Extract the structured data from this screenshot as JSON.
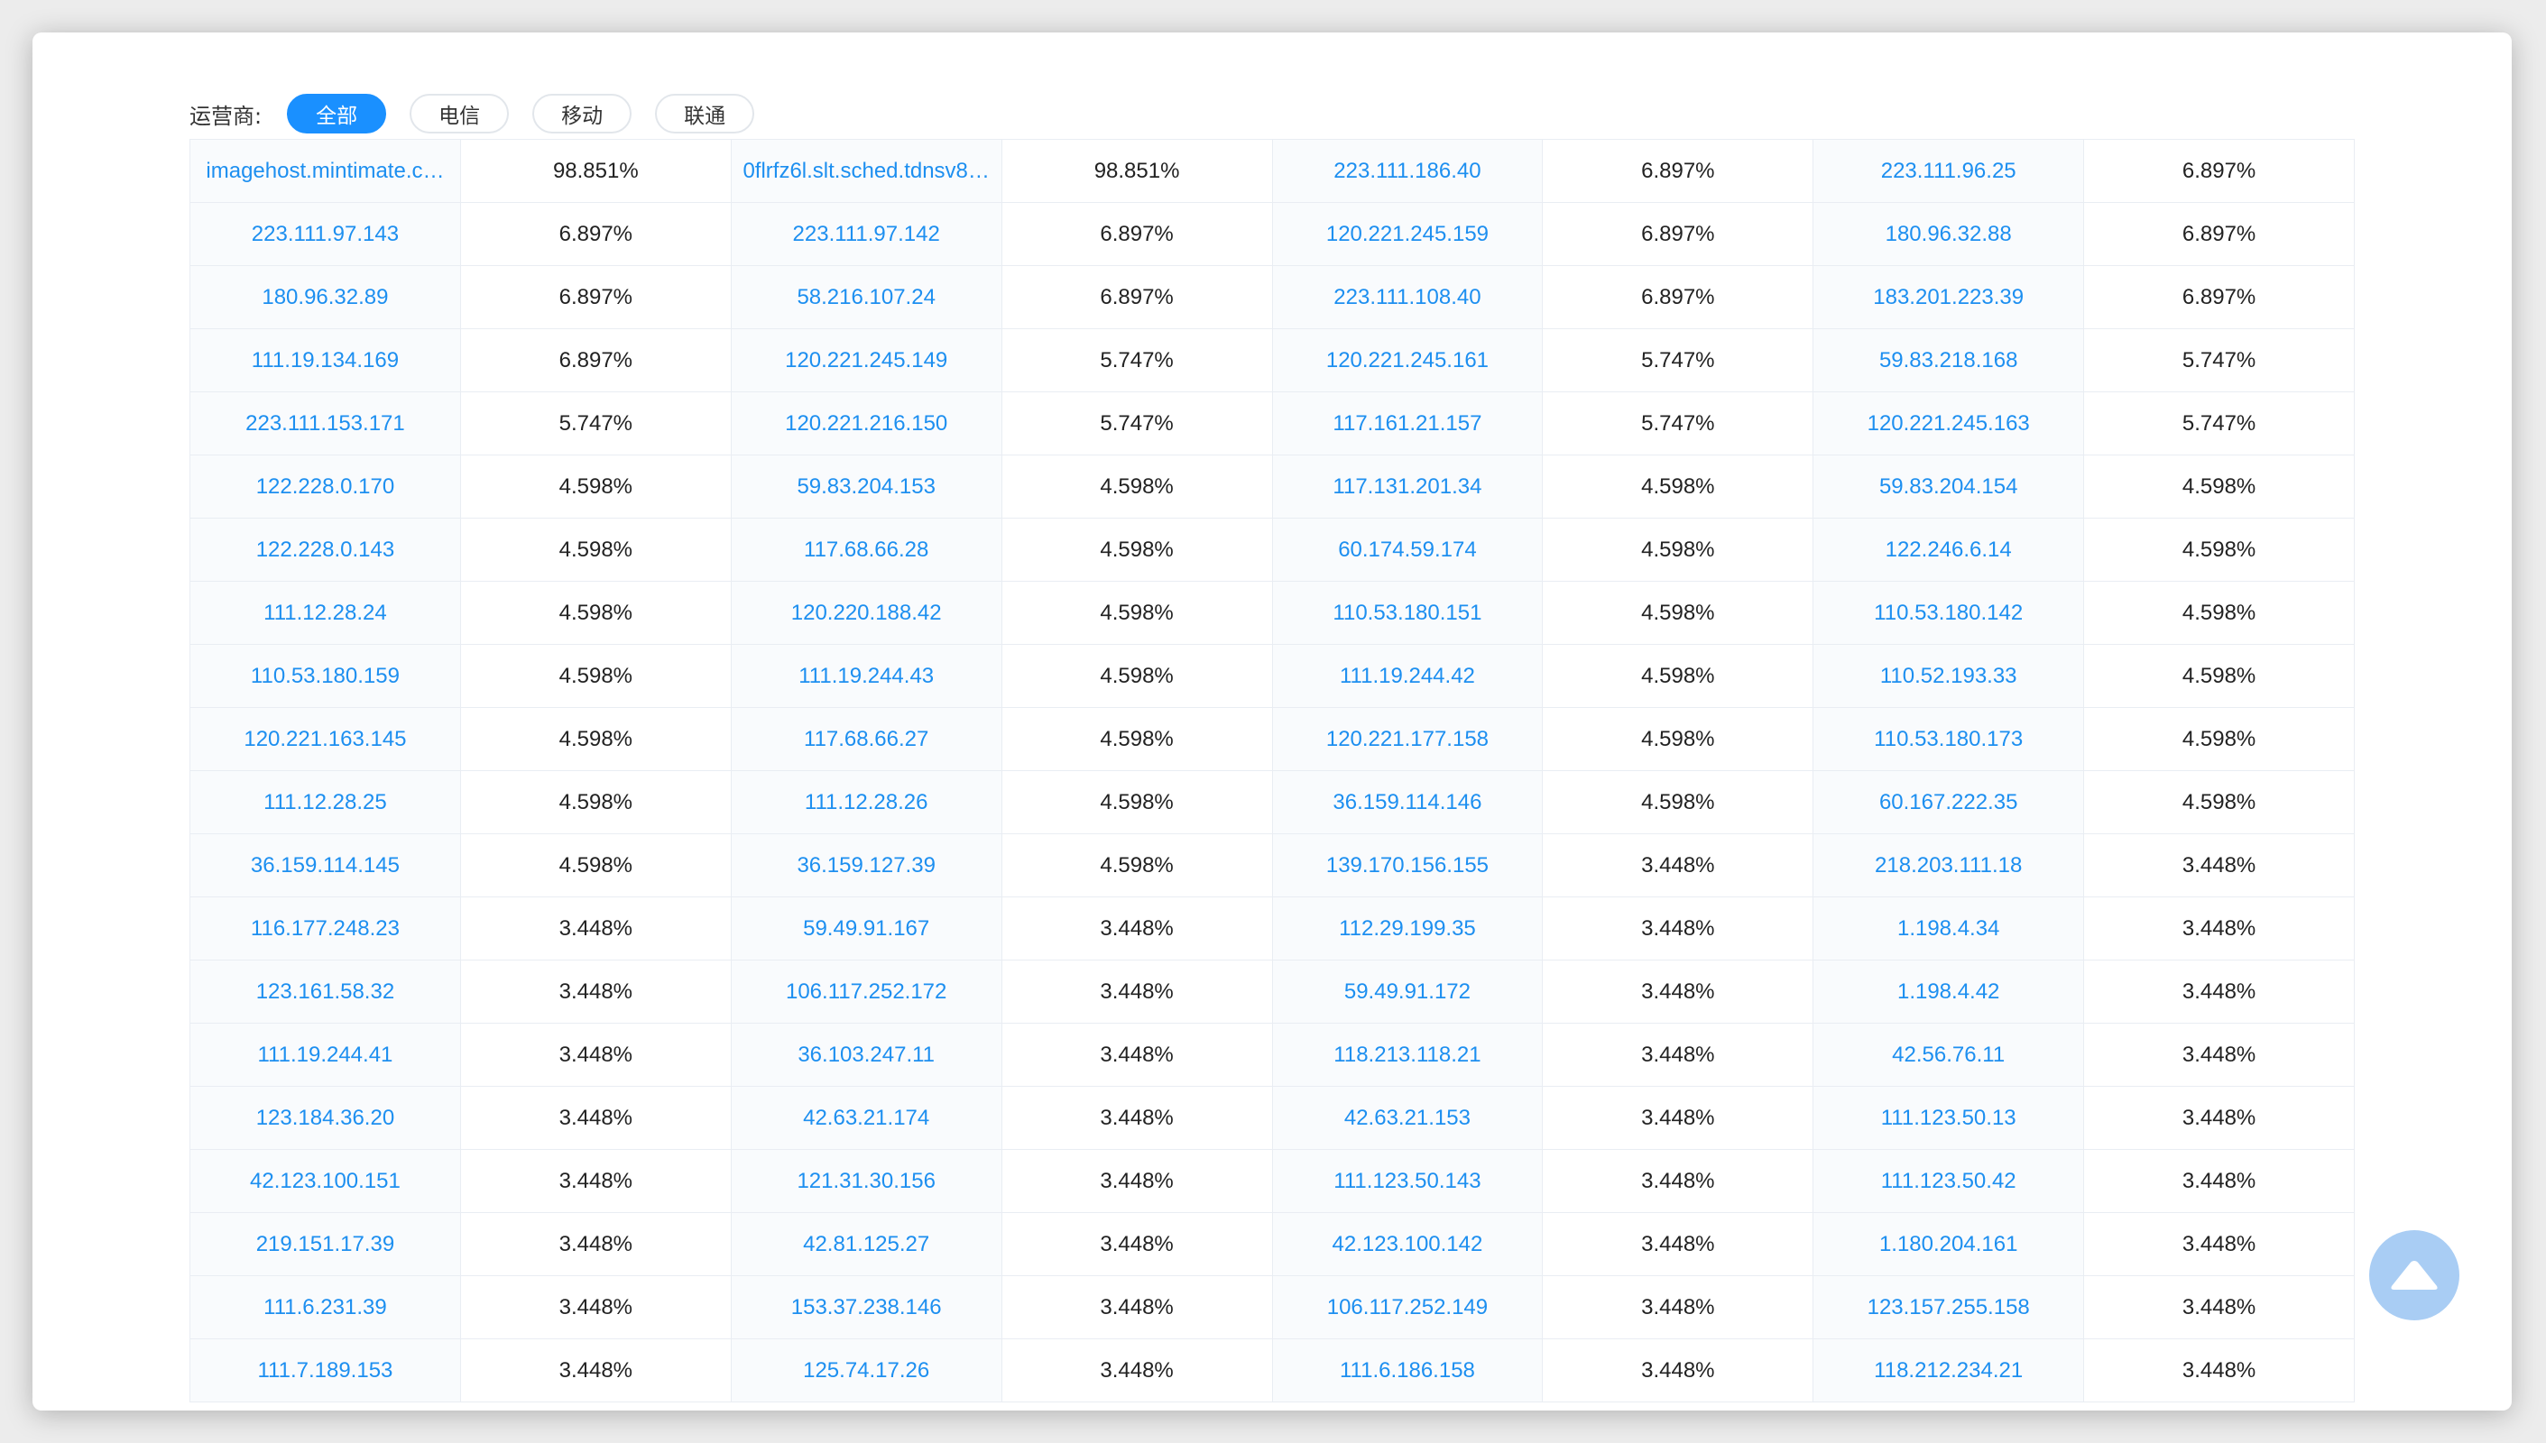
{
  "filter": {
    "label": "运营商:",
    "options": [
      {
        "label": "全部",
        "active": true
      },
      {
        "label": "电信",
        "active": false
      },
      {
        "label": "移动",
        "active": false
      },
      {
        "label": "联通",
        "active": false
      }
    ]
  },
  "colors": {
    "accent": "#1a90ff",
    "link": "#1d8ff0",
    "back_to_top": "#a9cdf4"
  },
  "icons": {
    "back_to_top": "triangle-up-icon"
  },
  "table": {
    "rows": [
      [
        [
          "imagehost.mintimate.c…",
          "98.851%"
        ],
        [
          "0flrfz6l.slt.sched.tdnsv8…",
          "98.851%"
        ],
        [
          "223.111.186.40",
          "6.897%"
        ],
        [
          "223.111.96.25",
          "6.897%"
        ]
      ],
      [
        [
          "223.111.97.143",
          "6.897%"
        ],
        [
          "223.111.97.142",
          "6.897%"
        ],
        [
          "120.221.245.159",
          "6.897%"
        ],
        [
          "180.96.32.88",
          "6.897%"
        ]
      ],
      [
        [
          "180.96.32.89",
          "6.897%"
        ],
        [
          "58.216.107.24",
          "6.897%"
        ],
        [
          "223.111.108.40",
          "6.897%"
        ],
        [
          "183.201.223.39",
          "6.897%"
        ]
      ],
      [
        [
          "111.19.134.169",
          "6.897%"
        ],
        [
          "120.221.245.149",
          "5.747%"
        ],
        [
          "120.221.245.161",
          "5.747%"
        ],
        [
          "59.83.218.168",
          "5.747%"
        ]
      ],
      [
        [
          "223.111.153.171",
          "5.747%"
        ],
        [
          "120.221.216.150",
          "5.747%"
        ],
        [
          "117.161.21.157",
          "5.747%"
        ],
        [
          "120.221.245.163",
          "5.747%"
        ]
      ],
      [
        [
          "122.228.0.170",
          "4.598%"
        ],
        [
          "59.83.204.153",
          "4.598%"
        ],
        [
          "117.131.201.34",
          "4.598%"
        ],
        [
          "59.83.204.154",
          "4.598%"
        ]
      ],
      [
        [
          "122.228.0.143",
          "4.598%"
        ],
        [
          "117.68.66.28",
          "4.598%"
        ],
        [
          "60.174.59.174",
          "4.598%"
        ],
        [
          "122.246.6.14",
          "4.598%"
        ]
      ],
      [
        [
          "111.12.28.24",
          "4.598%"
        ],
        [
          "120.220.188.42",
          "4.598%"
        ],
        [
          "110.53.180.151",
          "4.598%"
        ],
        [
          "110.53.180.142",
          "4.598%"
        ]
      ],
      [
        [
          "110.53.180.159",
          "4.598%"
        ],
        [
          "111.19.244.43",
          "4.598%"
        ],
        [
          "111.19.244.42",
          "4.598%"
        ],
        [
          "110.52.193.33",
          "4.598%"
        ]
      ],
      [
        [
          "120.221.163.145",
          "4.598%"
        ],
        [
          "117.68.66.27",
          "4.598%"
        ],
        [
          "120.221.177.158",
          "4.598%"
        ],
        [
          "110.53.180.173",
          "4.598%"
        ]
      ],
      [
        [
          "111.12.28.25",
          "4.598%"
        ],
        [
          "111.12.28.26",
          "4.598%"
        ],
        [
          "36.159.114.146",
          "4.598%"
        ],
        [
          "60.167.222.35",
          "4.598%"
        ]
      ],
      [
        [
          "36.159.114.145",
          "4.598%"
        ],
        [
          "36.159.127.39",
          "4.598%"
        ],
        [
          "139.170.156.155",
          "3.448%"
        ],
        [
          "218.203.111.18",
          "3.448%"
        ]
      ],
      [
        [
          "116.177.248.23",
          "3.448%"
        ],
        [
          "59.49.91.167",
          "3.448%"
        ],
        [
          "112.29.199.35",
          "3.448%"
        ],
        [
          "1.198.4.34",
          "3.448%"
        ]
      ],
      [
        [
          "123.161.58.32",
          "3.448%"
        ],
        [
          "106.117.252.172",
          "3.448%"
        ],
        [
          "59.49.91.172",
          "3.448%"
        ],
        [
          "1.198.4.42",
          "3.448%"
        ]
      ],
      [
        [
          "111.19.244.41",
          "3.448%"
        ],
        [
          "36.103.247.11",
          "3.448%"
        ],
        [
          "118.213.118.21",
          "3.448%"
        ],
        [
          "42.56.76.11",
          "3.448%"
        ]
      ],
      [
        [
          "123.184.36.20",
          "3.448%"
        ],
        [
          "42.63.21.174",
          "3.448%"
        ],
        [
          "42.63.21.153",
          "3.448%"
        ],
        [
          "111.123.50.13",
          "3.448%"
        ]
      ],
      [
        [
          "42.123.100.151",
          "3.448%"
        ],
        [
          "121.31.30.156",
          "3.448%"
        ],
        [
          "111.123.50.143",
          "3.448%"
        ],
        [
          "111.123.50.42",
          "3.448%"
        ]
      ],
      [
        [
          "219.151.17.39",
          "3.448%"
        ],
        [
          "42.81.125.27",
          "3.448%"
        ],
        [
          "42.123.100.142",
          "3.448%"
        ],
        [
          "1.180.204.161",
          "3.448%"
        ]
      ],
      [
        [
          "111.6.231.39",
          "3.448%"
        ],
        [
          "153.37.238.146",
          "3.448%"
        ],
        [
          "106.117.252.149",
          "3.448%"
        ],
        [
          "123.157.255.158",
          "3.448%"
        ]
      ],
      [
        [
          "111.7.189.153",
          "3.448%"
        ],
        [
          "125.74.17.26",
          "3.448%"
        ],
        [
          "111.6.186.158",
          "3.448%"
        ],
        [
          "118.212.234.21",
          "3.448%"
        ]
      ]
    ]
  }
}
